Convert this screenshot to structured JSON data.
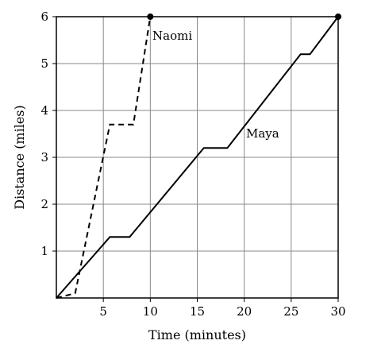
{
  "chart_data": {
    "type": "line",
    "xlabel": "Time (minutes)",
    "ylabel": "Distance (miles)",
    "xlim": [
      0,
      30
    ],
    "ylim": [
      0,
      6
    ],
    "xticks": [
      5,
      10,
      15,
      20,
      25,
      30
    ],
    "yticks": [
      1,
      2,
      3,
      4,
      5,
      6
    ],
    "grid": true,
    "series": [
      {
        "name": "Naomi",
        "style": "dashed",
        "end_marker": true,
        "x": [
          0,
          2,
          5.7,
          8.2,
          10
        ],
        "y": [
          0,
          0.1,
          3.7,
          3.7,
          6
        ]
      },
      {
        "name": "Maya",
        "style": "solid",
        "end_marker": true,
        "x": [
          0,
          5.7,
          7.8,
          15.7,
          18.2,
          26,
          27,
          30
        ],
        "y": [
          0,
          1.3,
          1.3,
          3.2,
          3.2,
          5.2,
          5.2,
          6
        ]
      }
    ],
    "colors": {
      "line": "#000000",
      "grid": "#888888"
    }
  }
}
